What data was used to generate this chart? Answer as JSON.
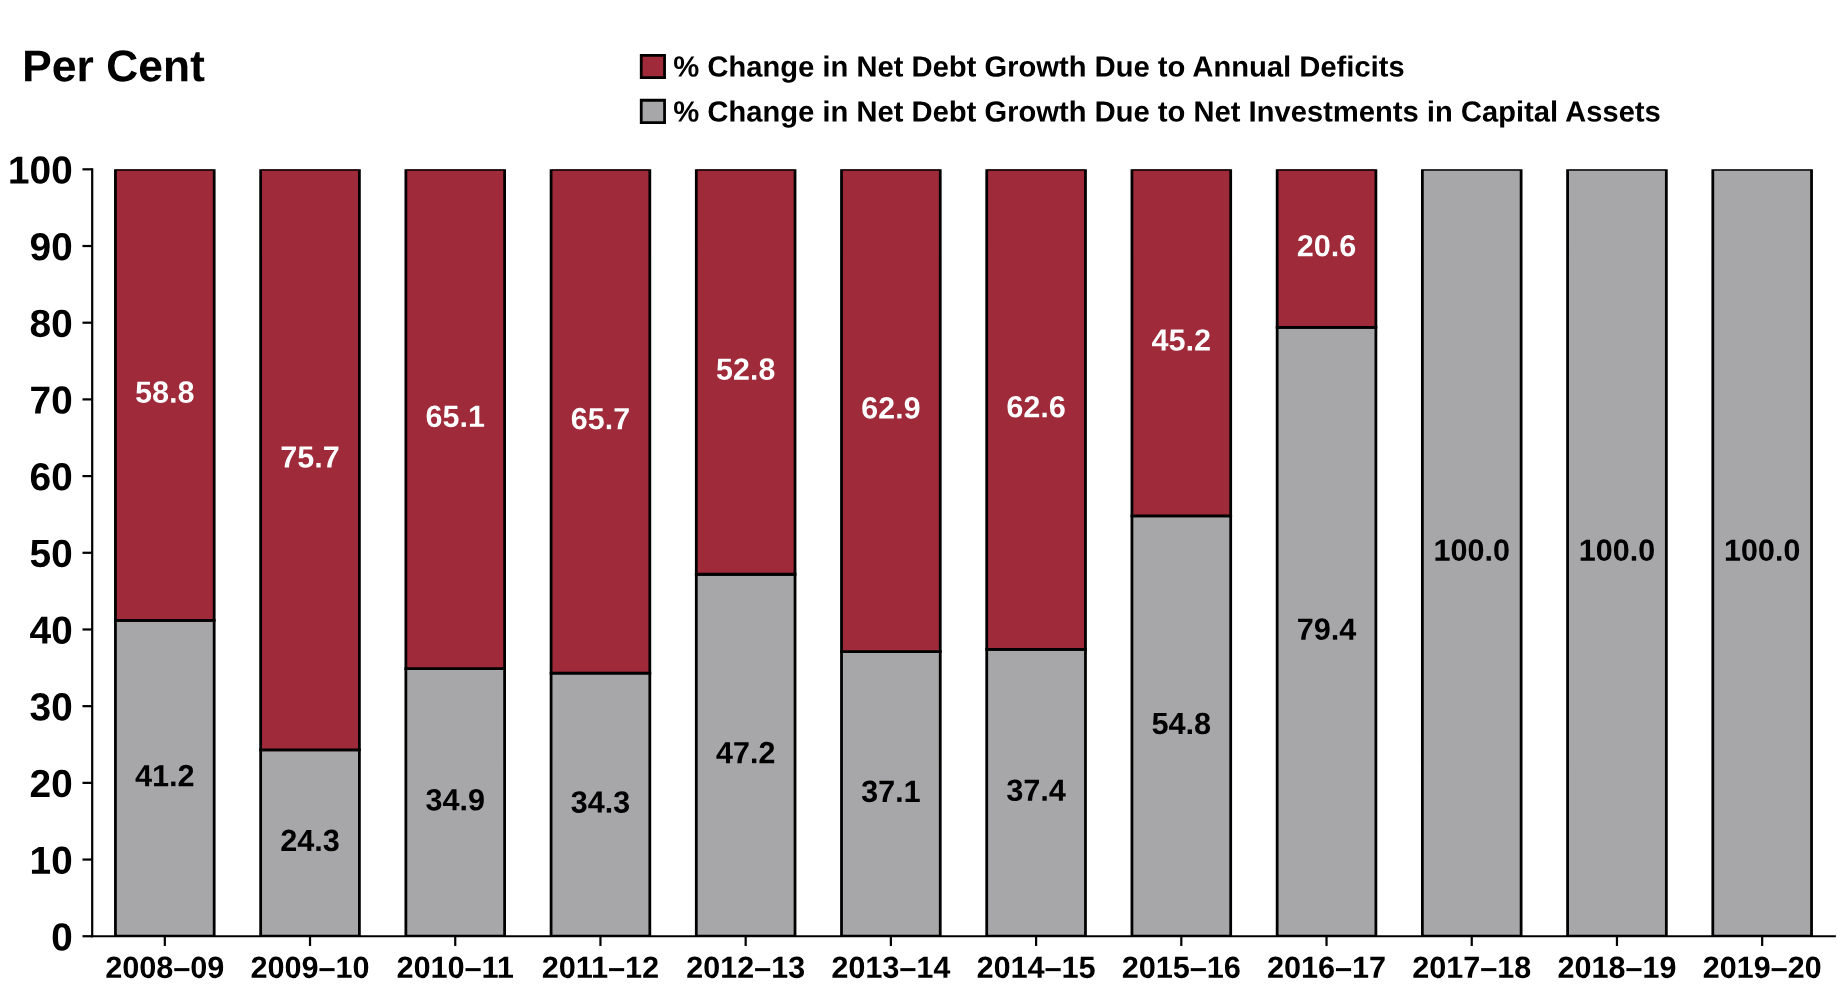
{
  "chart_data": {
    "type": "bar",
    "stacked": true,
    "ylabel": "Per Cent",
    "categories": [
      "2008–09",
      "2009–10",
      "2010–11",
      "2011–12",
      "2012–13",
      "2013–14",
      "2014–15",
      "2015–16",
      "2016–17",
      "2017–18",
      "2018–19",
      "2019–20"
    ],
    "series": [
      {
        "name": "% Change in Net Debt Growth Due to Net Investments in Capital Assets",
        "color": "#a7a7a9",
        "values": [
          41.2,
          24.3,
          34.9,
          34.3,
          47.2,
          37.1,
          37.4,
          54.8,
          79.4,
          100.0,
          100.0,
          100.0
        ],
        "value_labels": [
          "41.2",
          "24.3",
          "34.9",
          "34.3",
          "47.2",
          "37.1",
          "37.4",
          "54.8",
          "79.4",
          "100.0",
          "100.0",
          "100.0"
        ]
      },
      {
        "name": "% Change in Net Debt Growth Due to Annual Deficits",
        "color": "#9e2a3a",
        "values": [
          58.8,
          75.7,
          65.1,
          65.7,
          52.8,
          62.9,
          62.6,
          45.2,
          20.6,
          null,
          null,
          null
        ],
        "value_labels": [
          "58.8",
          "75.7",
          "65.1",
          "65.7",
          "52.8",
          "62.9",
          "62.6",
          "45.2",
          "20.6",
          null,
          null,
          null
        ]
      }
    ],
    "ylim": [
      0,
      100
    ],
    "yticks": [
      0,
      10,
      20,
      30,
      40,
      50,
      60,
      70,
      80,
      90,
      100
    ],
    "grid": false,
    "legend": "top"
  }
}
